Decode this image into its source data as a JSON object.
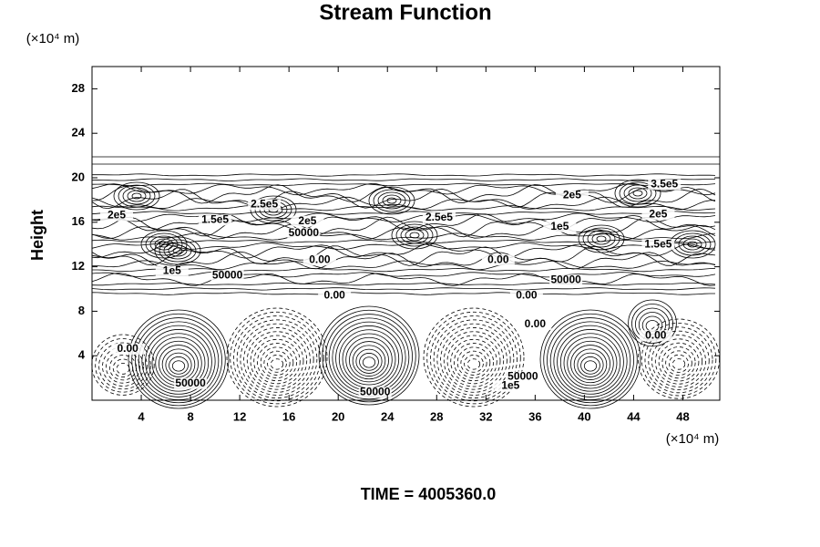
{
  "chart_data": {
    "type": "contour",
    "title": "Stream Function",
    "ylabel": "Height",
    "y_unit": "(×10⁴ m)",
    "x_unit": "(×10⁴ m)",
    "footer": "TIME = 4005360.0",
    "xlim": [
      0,
      51
    ],
    "ylim": [
      0,
      30
    ],
    "xticks": [
      4,
      8,
      12,
      16,
      20,
      24,
      28,
      32,
      36,
      40,
      44,
      48
    ],
    "yticks": [
      4,
      8,
      12,
      16,
      20,
      24,
      28
    ],
    "contour_labels": [
      {
        "text": "2e5",
        "x": 2,
        "y": 16.6
      },
      {
        "text": "1.5e5",
        "x": 10,
        "y": 16.2
      },
      {
        "text": "2.5e5",
        "x": 14,
        "y": 17.6
      },
      {
        "text": "2e5",
        "x": 17.5,
        "y": 16.1
      },
      {
        "text": "50000",
        "x": 17.2,
        "y": 15
      },
      {
        "text": "0.00",
        "x": 18.5,
        "y": 12.6
      },
      {
        "text": "1e5",
        "x": 6.5,
        "y": 11.6
      },
      {
        "text": "50000",
        "x": 11,
        "y": 11.2
      },
      {
        "text": "0.00",
        "x": 19.7,
        "y": 9.4
      },
      {
        "text": "2.5e5",
        "x": 28.2,
        "y": 16.4
      },
      {
        "text": "0.00",
        "x": 33,
        "y": 12.6
      },
      {
        "text": "0.00",
        "x": 35.3,
        "y": 9.4
      },
      {
        "text": "50000",
        "x": 38.5,
        "y": 10.8
      },
      {
        "text": "1e5",
        "x": 38,
        "y": 15.6
      },
      {
        "text": "2e5",
        "x": 39,
        "y": 18.4
      },
      {
        "text": "3.5e5",
        "x": 46.5,
        "y": 19.4
      },
      {
        "text": "2e5",
        "x": 46,
        "y": 16.7
      },
      {
        "text": "1.5e5",
        "x": 46,
        "y": 14
      },
      {
        "text": "0.00",
        "x": 36,
        "y": 6.8
      },
      {
        "text": "0.00",
        "x": 45.8,
        "y": 5.8
      },
      {
        "text": "0.00",
        "x": 2.9,
        "y": 4.6
      },
      {
        "text": "50000",
        "x": 8,
        "y": 1.5
      },
      {
        "text": "50000",
        "x": 23,
        "y": 0.7
      },
      {
        "text": "50000",
        "x": 35,
        "y": 2.1
      },
      {
        "text": "1e5",
        "x": 34,
        "y": 1.3
      }
    ]
  }
}
